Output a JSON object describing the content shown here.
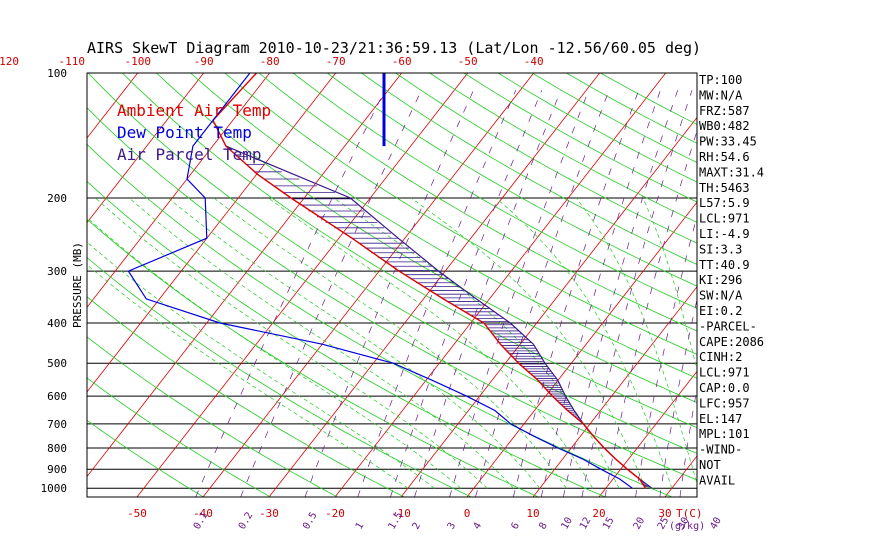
{
  "chart_data": {
    "type": "skewt",
    "title": "AIRS SkewT Diagram 2010-10-23/21:36:59.13 (Lat/Lon -12.56/60.05 deg)",
    "ylabel": "PRESSURE (MB)",
    "xlabel": "T(C)",
    "mixing_ratio_unit": "(g/kg)",
    "pressure_levels": [
      100,
      200,
      300,
      400,
      500,
      600,
      700,
      800,
      900,
      1000
    ],
    "top_temperature_ticks": [
      -120,
      -110,
      -100,
      -90,
      -80,
      -70,
      -60,
      -50,
      -40
    ],
    "bottom_temperature_ticks": [
      -50,
      -40,
      -30,
      -20,
      -10,
      0,
      10,
      20,
      30
    ],
    "mixing_ratio_ticks": [
      "0.1",
      "0.2",
      "0.5",
      "1",
      "1.5",
      "2",
      "3",
      "4",
      "6",
      "8",
      "10",
      "12",
      "15",
      "20",
      "25",
      "30",
      "40"
    ],
    "legend": [
      {
        "label": "Ambient Air Temp",
        "color": "#dd0000"
      },
      {
        "label": "Dew Point Temp",
        "color": "#0000dd"
      },
      {
        "label": "Air Parcel Temp",
        "color": "#3a1a8a"
      }
    ],
    "series": [
      {
        "name": "Ambient Air Temp",
        "color": "#dd0000",
        "points": [
          [
            100,
            -82
          ],
          [
            130,
            -83
          ],
          [
            150,
            -78
          ],
          [
            175,
            -70
          ],
          [
            200,
            -62
          ],
          [
            250,
            -48
          ],
          [
            300,
            -37
          ],
          [
            350,
            -27
          ],
          [
            400,
            -18
          ],
          [
            450,
            -13
          ],
          [
            500,
            -8
          ],
          [
            550,
            -3
          ],
          [
            600,
            1
          ],
          [
            650,
            5
          ],
          [
            700,
            9
          ],
          [
            750,
            12
          ],
          [
            800,
            15
          ],
          [
            850,
            18
          ],
          [
            900,
            21
          ],
          [
            950,
            24
          ],
          [
            1000,
            26
          ]
        ]
      },
      {
        "name": "Dew Point Temp",
        "color": "#0000dd",
        "points": [
          [
            100,
            -83
          ],
          [
            150,
            -83
          ],
          [
            180,
            -80
          ],
          [
            200,
            -75
          ],
          [
            250,
            -70
          ],
          [
            300,
            -78
          ],
          [
            350,
            -72
          ],
          [
            400,
            -58
          ],
          [
            450,
            -40
          ],
          [
            500,
            -27
          ],
          [
            550,
            -19
          ],
          [
            600,
            -12
          ],
          [
            650,
            -6
          ],
          [
            700,
            -2
          ],
          [
            750,
            3
          ],
          [
            800,
            8
          ],
          [
            850,
            13
          ],
          [
            900,
            17
          ],
          [
            950,
            21
          ],
          [
            1000,
            24
          ]
        ]
      },
      {
        "name": "Air Parcel Temp",
        "color": "#3a1a8a",
        "points": [
          [
            150,
            -78
          ],
          [
            200,
            -53
          ],
          [
            250,
            -41
          ],
          [
            300,
            -31
          ],
          [
            350,
            -22
          ],
          [
            400,
            -14
          ],
          [
            450,
            -8
          ],
          [
            500,
            -4
          ],
          [
            550,
            0
          ],
          [
            600,
            3
          ],
          [
            650,
            6
          ],
          [
            700,
            9
          ],
          [
            750,
            12
          ],
          [
            800,
            15
          ],
          [
            850,
            18
          ],
          [
            900,
            21
          ],
          [
            950,
            24
          ],
          [
            1000,
            27
          ]
        ]
      }
    ],
    "stability_indices": [
      "TP:100",
      "MW:N/A",
      "FRZ:587",
      "WB0:482",
      "PW:33.45",
      "RH:54.6",
      "MAXT:31.4",
      "TH:5463",
      "L57:5.9",
      "LCL:971",
      "LI:-4.9",
      "SI:3.3",
      "TT:40.9",
      "KI:296",
      "SW:N/A",
      "EI:0.2",
      "-PARCEL-",
      "CAPE:2086",
      "CINH:2",
      "LCL:971",
      "CAP:0.0",
      "LFC:957",
      "EL:147",
      "MPL:101",
      "-WIND-",
      "NOT",
      "AVAIL"
    ],
    "grid": true,
    "legend_position": "top-left"
  }
}
